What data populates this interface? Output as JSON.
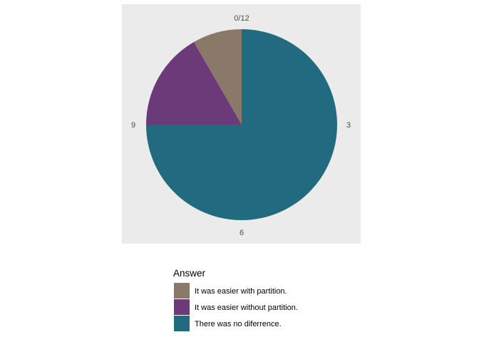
{
  "chart_data": {
    "type": "pie",
    "title": "",
    "categories": [
      "It was easier with partition.",
      "It was easier without partition.",
      "There was no diferrence."
    ],
    "values": [
      1,
      2,
      9
    ],
    "total": 12,
    "colors": [
      "#8a7968",
      "#6c3a78",
      "#216a80"
    ],
    "theta_ticks": [
      "0/12",
      "3",
      "6",
      "9"
    ],
    "panel_background": "#ebebeb",
    "grid": false,
    "legend": {
      "title": "Answer",
      "placement": "bottom"
    }
  }
}
